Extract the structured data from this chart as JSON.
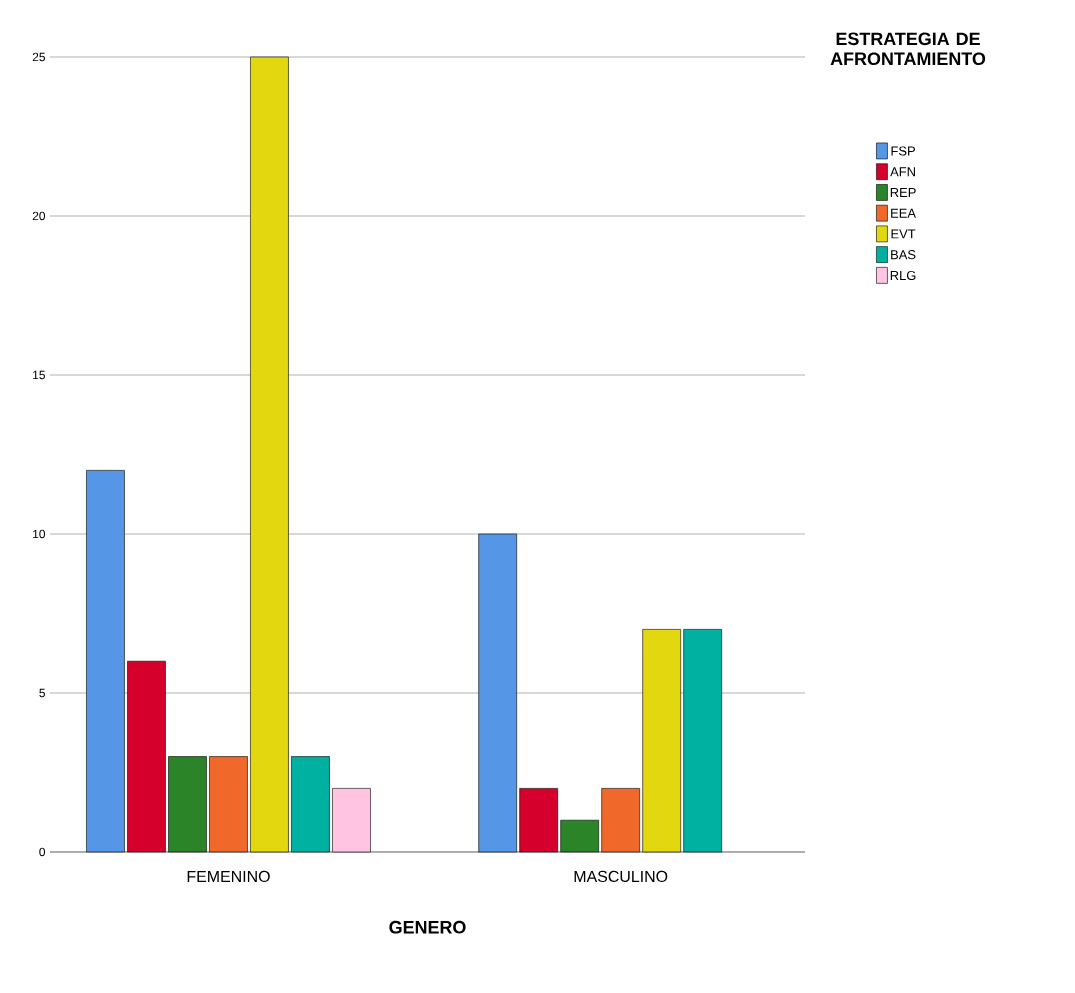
{
  "chart_data": {
    "type": "bar",
    "xlabel": "GENERO",
    "legend_title": "ESTRATEGIA DE AFRONTAMIENTO",
    "categories": [
      "FEMENINO",
      "MASCULINO"
    ],
    "series": [
      {
        "name": "FSP",
        "color": "#5596e6",
        "values": [
          12,
          10
        ]
      },
      {
        "name": "AFN",
        "color": "#d5002c",
        "values": [
          6,
          2
        ]
      },
      {
        "name": "REP",
        "color": "#2b8427",
        "values": [
          3,
          1
        ]
      },
      {
        "name": "EEA",
        "color": "#f0692a",
        "values": [
          3,
          2
        ]
      },
      {
        "name": "EVT",
        "color": "#e3d70f",
        "values": [
          25,
          7
        ]
      },
      {
        "name": "BAS",
        "color": "#00b0a0",
        "values": [
          3,
          7
        ]
      },
      {
        "name": "RLG",
        "color": "#ffc4e1",
        "values": [
          2,
          null
        ]
      }
    ],
    "ylim": [
      0,
      25
    ],
    "yticks": [
      0,
      5,
      10,
      15,
      20,
      25
    ],
    "grid": "y",
    "legend": "right"
  }
}
